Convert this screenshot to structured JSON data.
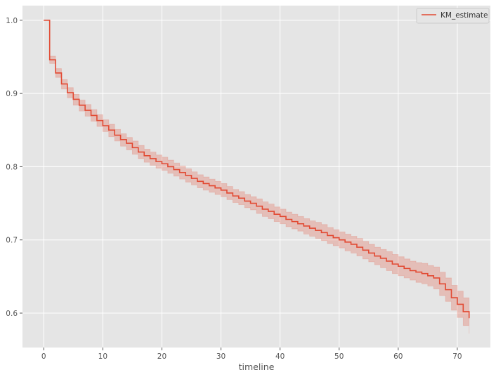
{
  "chart_data": {
    "type": "line",
    "title": "",
    "xlabel": "timeline",
    "ylabel": "",
    "xlim": [
      -3.6,
      75.6
    ],
    "ylim": [
      0.553,
      1.02
    ],
    "xticks": [
      "0",
      "10",
      "20",
      "30",
      "40",
      "50",
      "60",
      "70"
    ],
    "yticks": [
      "0.6",
      "0.7",
      "0.8",
      "0.9",
      "1.0"
    ],
    "grid": true,
    "legend": "top-right",
    "series": [
      {
        "name": "KM_estimate",
        "color": "#e24a33",
        "step": "post",
        "x": [
          0,
          1,
          2,
          3,
          4,
          5,
          6,
          7,
          8,
          9,
          10,
          11,
          12,
          13,
          14,
          15,
          16,
          17,
          18,
          19,
          20,
          21,
          22,
          23,
          24,
          25,
          26,
          27,
          28,
          29,
          30,
          31,
          32,
          33,
          34,
          35,
          36,
          37,
          38,
          39,
          40,
          41,
          42,
          43,
          44,
          45,
          46,
          47,
          48,
          49,
          50,
          51,
          52,
          53,
          54,
          55,
          56,
          57,
          58,
          59,
          60,
          61,
          62,
          63,
          64,
          65,
          66,
          67,
          68,
          69,
          70,
          71,
          72
        ],
        "y": [
          1.0,
          0.946,
          0.928,
          0.913,
          0.901,
          0.892,
          0.884,
          0.877,
          0.87,
          0.863,
          0.856,
          0.85,
          0.843,
          0.837,
          0.832,
          0.826,
          0.82,
          0.815,
          0.811,
          0.807,
          0.804,
          0.8,
          0.796,
          0.792,
          0.788,
          0.784,
          0.78,
          0.777,
          0.774,
          0.771,
          0.768,
          0.764,
          0.76,
          0.757,
          0.753,
          0.75,
          0.746,
          0.742,
          0.739,
          0.735,
          0.732,
          0.728,
          0.725,
          0.722,
          0.719,
          0.716,
          0.713,
          0.71,
          0.706,
          0.703,
          0.7,
          0.697,
          0.694,
          0.69,
          0.686,
          0.682,
          0.678,
          0.675,
          0.671,
          0.667,
          0.664,
          0.661,
          0.658,
          0.656,
          0.654,
          0.651,
          0.648,
          0.64,
          0.632,
          0.621,
          0.612,
          0.602,
          0.593
        ],
        "ci_lower": [
          1.0,
          0.941,
          0.922,
          0.906,
          0.894,
          0.884,
          0.876,
          0.869,
          0.862,
          0.855,
          0.848,
          0.841,
          0.835,
          0.828,
          0.823,
          0.817,
          0.811,
          0.806,
          0.802,
          0.798,
          0.795,
          0.791,
          0.787,
          0.783,
          0.779,
          0.775,
          0.771,
          0.768,
          0.765,
          0.762,
          0.759,
          0.755,
          0.751,
          0.748,
          0.744,
          0.741,
          0.736,
          0.732,
          0.729,
          0.725,
          0.722,
          0.718,
          0.715,
          0.712,
          0.708,
          0.705,
          0.702,
          0.699,
          0.695,
          0.692,
          0.689,
          0.685,
          0.682,
          0.678,
          0.674,
          0.67,
          0.666,
          0.662,
          0.658,
          0.654,
          0.651,
          0.648,
          0.645,
          0.642,
          0.64,
          0.637,
          0.633,
          0.624,
          0.616,
          0.604,
          0.594,
          0.583,
          0.572
        ],
        "ci_upper": [
          1.0,
          0.951,
          0.934,
          0.919,
          0.908,
          0.899,
          0.891,
          0.885,
          0.878,
          0.871,
          0.864,
          0.858,
          0.851,
          0.845,
          0.84,
          0.835,
          0.829,
          0.824,
          0.82,
          0.816,
          0.813,
          0.809,
          0.805,
          0.801,
          0.797,
          0.793,
          0.789,
          0.786,
          0.783,
          0.78,
          0.777,
          0.773,
          0.769,
          0.766,
          0.762,
          0.759,
          0.756,
          0.752,
          0.749,
          0.745,
          0.742,
          0.738,
          0.735,
          0.732,
          0.729,
          0.726,
          0.724,
          0.721,
          0.717,
          0.714,
          0.711,
          0.708,
          0.705,
          0.702,
          0.698,
          0.694,
          0.69,
          0.687,
          0.684,
          0.68,
          0.677,
          0.674,
          0.671,
          0.669,
          0.668,
          0.665,
          0.663,
          0.656,
          0.648,
          0.638,
          0.63,
          0.621,
          0.613
        ]
      }
    ]
  }
}
